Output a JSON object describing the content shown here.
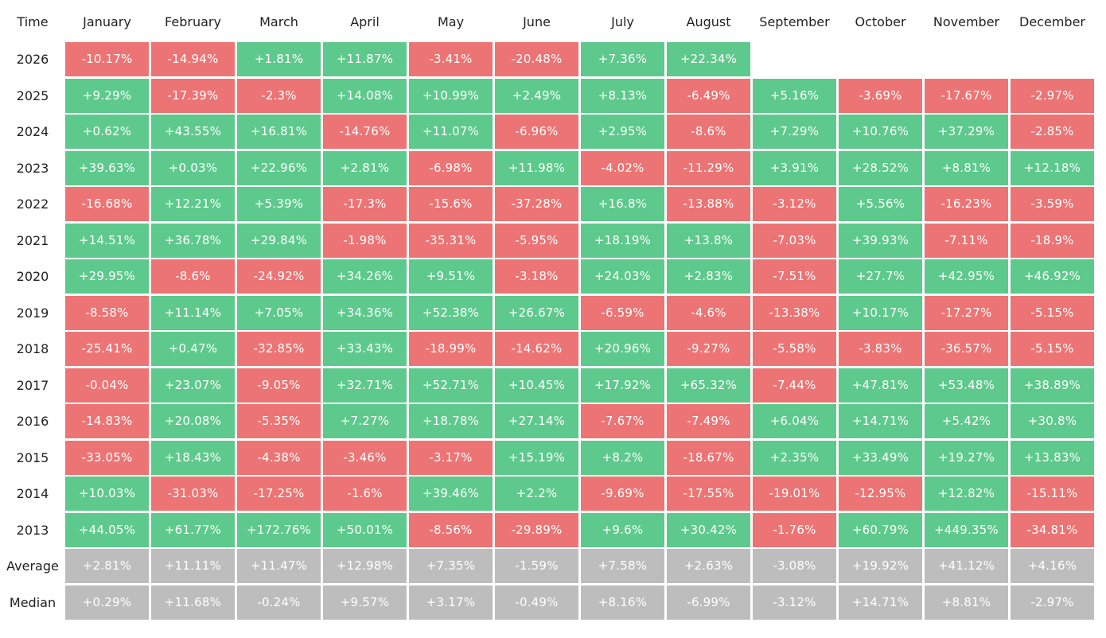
{
  "chart_data": {
    "type": "heatmap",
    "corner_label": "Time",
    "columns": [
      "January",
      "February",
      "March",
      "April",
      "May",
      "June",
      "July",
      "August",
      "September",
      "October",
      "November",
      "December"
    ],
    "colors": {
      "positive": "#5ec98c",
      "negative": "#ec7474",
      "summary": "#bdbdbd"
    },
    "rows": [
      {
        "label": "2026",
        "kind": "year",
        "values": [
          "-10.17%",
          "-14.94%",
          "+1.81%",
          "+11.87%",
          "-3.41%",
          "-20.48%",
          "+7.36%",
          "+22.34%",
          null,
          null,
          null,
          null
        ]
      },
      {
        "label": "2025",
        "kind": "year",
        "values": [
          "+9.29%",
          "-17.39%",
          "-2.3%",
          "+14.08%",
          "+10.99%",
          "+2.49%",
          "+8.13%",
          "-6.49%",
          "+5.16%",
          "-3.69%",
          "-17.67%",
          "-2.97%"
        ]
      },
      {
        "label": "2024",
        "kind": "year",
        "values": [
          "+0.62%",
          "+43.55%",
          "+16.81%",
          "-14.76%",
          "+11.07%",
          "-6.96%",
          "+2.95%",
          "-8.6%",
          "+7.29%",
          "+10.76%",
          "+37.29%",
          "-2.85%"
        ]
      },
      {
        "label": "2023",
        "kind": "year",
        "values": [
          "+39.63%",
          "+0.03%",
          "+22.96%",
          "+2.81%",
          "-6.98%",
          "+11.98%",
          "-4.02%",
          "-11.29%",
          "+3.91%",
          "+28.52%",
          "+8.81%",
          "+12.18%"
        ]
      },
      {
        "label": "2022",
        "kind": "year",
        "values": [
          "-16.68%",
          "+12.21%",
          "+5.39%",
          "-17.3%",
          "-15.6%",
          "-37.28%",
          "+16.8%",
          "-13.88%",
          "-3.12%",
          "+5.56%",
          "-16.23%",
          "-3.59%"
        ]
      },
      {
        "label": "2021",
        "kind": "year",
        "values": [
          "+14.51%",
          "+36.78%",
          "+29.84%",
          "-1.98%",
          "-35.31%",
          "-5.95%",
          "+18.19%",
          "+13.8%",
          "-7.03%",
          "+39.93%",
          "-7.11%",
          "-18.9%"
        ]
      },
      {
        "label": "2020",
        "kind": "year",
        "values": [
          "+29.95%",
          "-8.6%",
          "-24.92%",
          "+34.26%",
          "+9.51%",
          "-3.18%",
          "+24.03%",
          "+2.83%",
          "-7.51%",
          "+27.7%",
          "+42.95%",
          "+46.92%"
        ]
      },
      {
        "label": "2019",
        "kind": "year",
        "values": [
          "-8.58%",
          "+11.14%",
          "+7.05%",
          "+34.36%",
          "+52.38%",
          "+26.67%",
          "-6.59%",
          "-4.6%",
          "-13.38%",
          "+10.17%",
          "-17.27%",
          "-5.15%"
        ]
      },
      {
        "label": "2018",
        "kind": "year",
        "values": [
          "-25.41%",
          "+0.47%",
          "-32.85%",
          "+33.43%",
          "-18.99%",
          "-14.62%",
          "+20.96%",
          "-9.27%",
          "-5.58%",
          "-3.83%",
          "-36.57%",
          "-5.15%"
        ]
      },
      {
        "label": "2017",
        "kind": "year",
        "values": [
          "-0.04%",
          "+23.07%",
          "-9.05%",
          "+32.71%",
          "+52.71%",
          "+10.45%",
          "+17.92%",
          "+65.32%",
          "-7.44%",
          "+47.81%",
          "+53.48%",
          "+38.89%"
        ]
      },
      {
        "label": "2016",
        "kind": "year",
        "values": [
          "-14.83%",
          "+20.08%",
          "-5.35%",
          "+7.27%",
          "+18.78%",
          "+27.14%",
          "-7.67%",
          "-7.49%",
          "+6.04%",
          "+14.71%",
          "+5.42%",
          "+30.8%"
        ]
      },
      {
        "label": "2015",
        "kind": "year",
        "values": [
          "-33.05%",
          "+18.43%",
          "-4.38%",
          "-3.46%",
          "-3.17%",
          "+15.19%",
          "+8.2%",
          "-18.67%",
          "+2.35%",
          "+33.49%",
          "+19.27%",
          "+13.83%"
        ]
      },
      {
        "label": "2014",
        "kind": "year",
        "values": [
          "+10.03%",
          "-31.03%",
          "-17.25%",
          "-1.6%",
          "+39.46%",
          "+2.2%",
          "-9.69%",
          "-17.55%",
          "-19.01%",
          "-12.95%",
          "+12.82%",
          "-15.11%"
        ]
      },
      {
        "label": "2013",
        "kind": "year",
        "values": [
          "+44.05%",
          "+61.77%",
          "+172.76%",
          "+50.01%",
          "-8.56%",
          "-29.89%",
          "+9.6%",
          "+30.42%",
          "-1.76%",
          "+60.79%",
          "+449.35%",
          "-34.81%"
        ]
      },
      {
        "label": "Average",
        "kind": "summary",
        "values": [
          "+2.81%",
          "+11.11%",
          "+11.47%",
          "+12.98%",
          "+7.35%",
          "-1.59%",
          "+7.58%",
          "+2.63%",
          "-3.08%",
          "+19.92%",
          "+41.12%",
          "+4.16%"
        ]
      },
      {
        "label": "Median",
        "kind": "summary",
        "values": [
          "+0.29%",
          "+11.68%",
          "-0.24%",
          "+9.57%",
          "+3.17%",
          "-0.49%",
          "+8.16%",
          "-6.99%",
          "-3.12%",
          "+14.71%",
          "+8.81%",
          "-2.97%"
        ]
      }
    ]
  }
}
